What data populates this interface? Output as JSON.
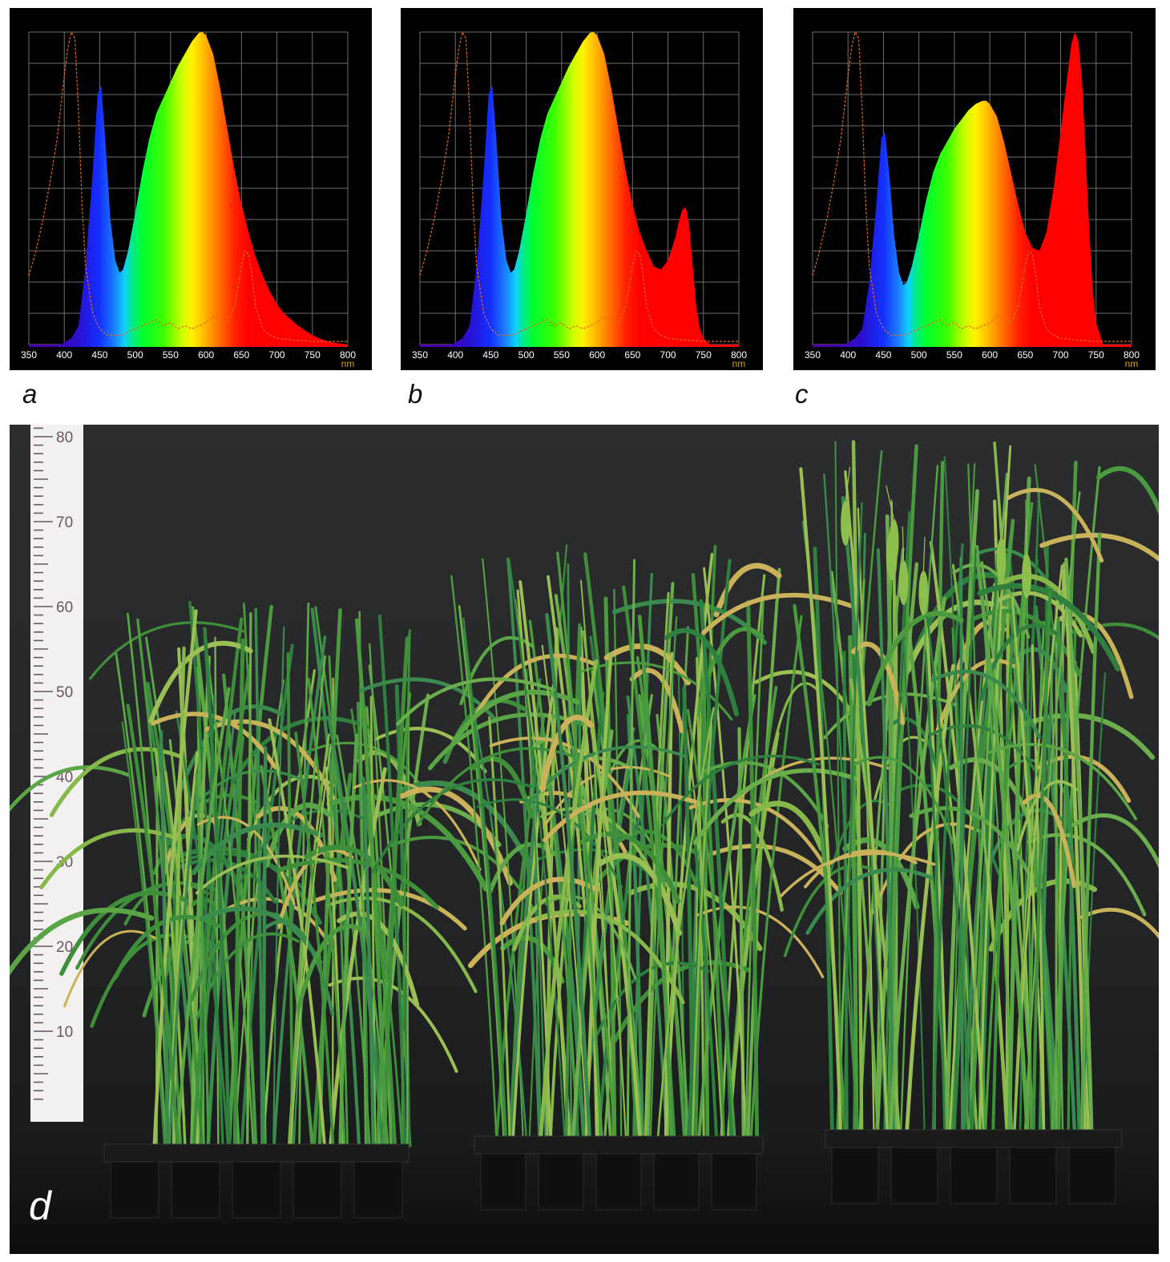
{
  "chart_data": [
    {
      "type": "area",
      "panel": "a",
      "unit": "nm",
      "xlim": [
        350,
        800
      ],
      "xticks": [
        350,
        400,
        450,
        500,
        550,
        600,
        650,
        700,
        750,
        800
      ],
      "grid": true,
      "spectrum": {
        "x": [
          395,
          410,
          420,
          430,
          440,
          447,
          452,
          458,
          465,
          472,
          478,
          483,
          490,
          500,
          510,
          520,
          530,
          540,
          550,
          560,
          570,
          580,
          590,
          595,
          600,
          610,
          620,
          630,
          640,
          650,
          660,
          670,
          680,
          690,
          700,
          710,
          720,
          730,
          740,
          750,
          760,
          770,
          780,
          790,
          800
        ],
        "y": [
          0,
          0.02,
          0.06,
          0.25,
          0.55,
          0.8,
          0.83,
          0.65,
          0.4,
          0.27,
          0.23,
          0.24,
          0.3,
          0.42,
          0.55,
          0.66,
          0.74,
          0.79,
          0.84,
          0.89,
          0.93,
          0.97,
          0.998,
          1,
          0.99,
          0.93,
          0.82,
          0.69,
          0.56,
          0.45,
          0.36,
          0.28,
          0.22,
          0.17,
          0.13,
          0.1,
          0.08,
          0.06,
          0.045,
          0.03,
          0.02,
          0.012,
          0.006,
          0.003,
          0
        ]
      },
      "reference": {
        "x": [
          350,
          360,
          370,
          380,
          390,
          395,
          400,
          405,
          410,
          415,
          420,
          425,
          430,
          440,
          450,
          460,
          470,
          480,
          490,
          500,
          510,
          520,
          530,
          540,
          550,
          560,
          570,
          580,
          590,
          600,
          610,
          620,
          630,
          640,
          650,
          655,
          660,
          665,
          670,
          680,
          690,
          700,
          720,
          750,
          800
        ],
        "y": [
          0.22,
          0.3,
          0.4,
          0.52,
          0.66,
          0.76,
          0.86,
          0.95,
          1,
          0.98,
          0.75,
          0.45,
          0.25,
          0.1,
          0.05,
          0.03,
          0.03,
          0.03,
          0.04,
          0.05,
          0.06,
          0.07,
          0.08,
          0.06,
          0.07,
          0.05,
          0.06,
          0.05,
          0.06,
          0.07,
          0.09,
          0.08,
          0.07,
          0.12,
          0.25,
          0.3,
          0.29,
          0.22,
          0.12,
          0.05,
          0.03,
          0.02,
          0.015,
          0.01,
          0.01
        ]
      }
    },
    {
      "type": "area",
      "panel": "b",
      "unit": "nm",
      "xlim": [
        350,
        800
      ],
      "xticks": [
        350,
        400,
        450,
        500,
        550,
        600,
        650,
        700,
        750,
        800
      ],
      "grid": true,
      "spectrum": {
        "x": [
          395,
          410,
          420,
          430,
          440,
          447,
          452,
          458,
          465,
          472,
          478,
          483,
          490,
          500,
          510,
          520,
          530,
          540,
          550,
          560,
          570,
          580,
          590,
          595,
          600,
          610,
          620,
          630,
          640,
          650,
          660,
          670,
          680,
          690,
          700,
          710,
          715,
          720,
          725,
          730,
          735,
          740,
          745,
          750,
          760
        ],
        "y": [
          0,
          0.02,
          0.06,
          0.25,
          0.55,
          0.8,
          0.83,
          0.65,
          0.4,
          0.27,
          0.23,
          0.24,
          0.3,
          0.42,
          0.55,
          0.66,
          0.74,
          0.79,
          0.84,
          0.89,
          0.93,
          0.97,
          0.998,
          1,
          0.99,
          0.93,
          0.82,
          0.69,
          0.56,
          0.45,
          0.36,
          0.3,
          0.25,
          0.24,
          0.27,
          0.34,
          0.39,
          0.43,
          0.44,
          0.38,
          0.25,
          0.12,
          0.05,
          0.02,
          0
        ]
      },
      "reference": {
        "x": [
          350,
          360,
          370,
          380,
          390,
          395,
          400,
          405,
          410,
          415,
          420,
          425,
          430,
          440,
          450,
          460,
          470,
          480,
          490,
          500,
          510,
          520,
          530,
          540,
          550,
          560,
          570,
          580,
          590,
          600,
          610,
          620,
          630,
          640,
          650,
          655,
          660,
          665,
          670,
          680,
          690,
          700,
          720,
          750,
          800
        ],
        "y": [
          0.22,
          0.3,
          0.4,
          0.52,
          0.66,
          0.76,
          0.86,
          0.95,
          1,
          0.98,
          0.75,
          0.45,
          0.25,
          0.1,
          0.05,
          0.03,
          0.03,
          0.03,
          0.04,
          0.05,
          0.06,
          0.07,
          0.08,
          0.06,
          0.07,
          0.05,
          0.06,
          0.05,
          0.06,
          0.07,
          0.09,
          0.08,
          0.07,
          0.12,
          0.25,
          0.3,
          0.29,
          0.22,
          0.12,
          0.05,
          0.03,
          0.02,
          0.015,
          0.01,
          0.01
        ]
      }
    },
    {
      "type": "area",
      "panel": "c",
      "unit": "nm",
      "xlim": [
        350,
        800
      ],
      "xticks": [
        350,
        400,
        450,
        500,
        550,
        600,
        650,
        700,
        750,
        800
      ],
      "grid": true,
      "spectrum": {
        "x": [
          395,
          410,
          420,
          430,
          440,
          447,
          452,
          458,
          465,
          472,
          478,
          483,
          490,
          500,
          510,
          520,
          530,
          540,
          550,
          560,
          570,
          580,
          590,
          595,
          600,
          610,
          620,
          630,
          640,
          650,
          660,
          670,
          680,
          690,
          700,
          710,
          715,
          720,
          725,
          730,
          735,
          740,
          745,
          750,
          760
        ],
        "y": [
          0,
          0.02,
          0.05,
          0.2,
          0.45,
          0.66,
          0.68,
          0.55,
          0.35,
          0.23,
          0.19,
          0.2,
          0.25,
          0.35,
          0.46,
          0.55,
          0.61,
          0.65,
          0.69,
          0.72,
          0.75,
          0.77,
          0.78,
          0.78,
          0.77,
          0.73,
          0.65,
          0.55,
          0.45,
          0.36,
          0.31,
          0.3,
          0.36,
          0.5,
          0.68,
          0.87,
          0.96,
          1,
          0.97,
          0.85,
          0.62,
          0.38,
          0.18,
          0.07,
          0
        ]
      },
      "reference": {
        "x": [
          350,
          360,
          370,
          380,
          390,
          395,
          400,
          405,
          410,
          415,
          420,
          425,
          430,
          440,
          450,
          460,
          470,
          480,
          490,
          500,
          510,
          520,
          530,
          540,
          550,
          560,
          570,
          580,
          590,
          600,
          610,
          620,
          630,
          640,
          650,
          655,
          660,
          665,
          670,
          680,
          690,
          700,
          720,
          750,
          800
        ],
        "y": [
          0.22,
          0.3,
          0.4,
          0.52,
          0.66,
          0.76,
          0.86,
          0.95,
          1,
          0.98,
          0.75,
          0.45,
          0.25,
          0.1,
          0.05,
          0.03,
          0.03,
          0.03,
          0.04,
          0.05,
          0.06,
          0.07,
          0.08,
          0.06,
          0.07,
          0.05,
          0.06,
          0.05,
          0.06,
          0.07,
          0.09,
          0.08,
          0.07,
          0.12,
          0.25,
          0.3,
          0.29,
          0.22,
          0.12,
          0.05,
          0.03,
          0.02,
          0.015,
          0.01,
          0.01
        ]
      }
    }
  ],
  "panel_labels": [
    "a",
    "b",
    "c"
  ],
  "photo": {
    "label": "d",
    "ruler_marks": [
      80,
      70,
      60,
      50,
      40,
      30,
      20,
      10
    ]
  }
}
